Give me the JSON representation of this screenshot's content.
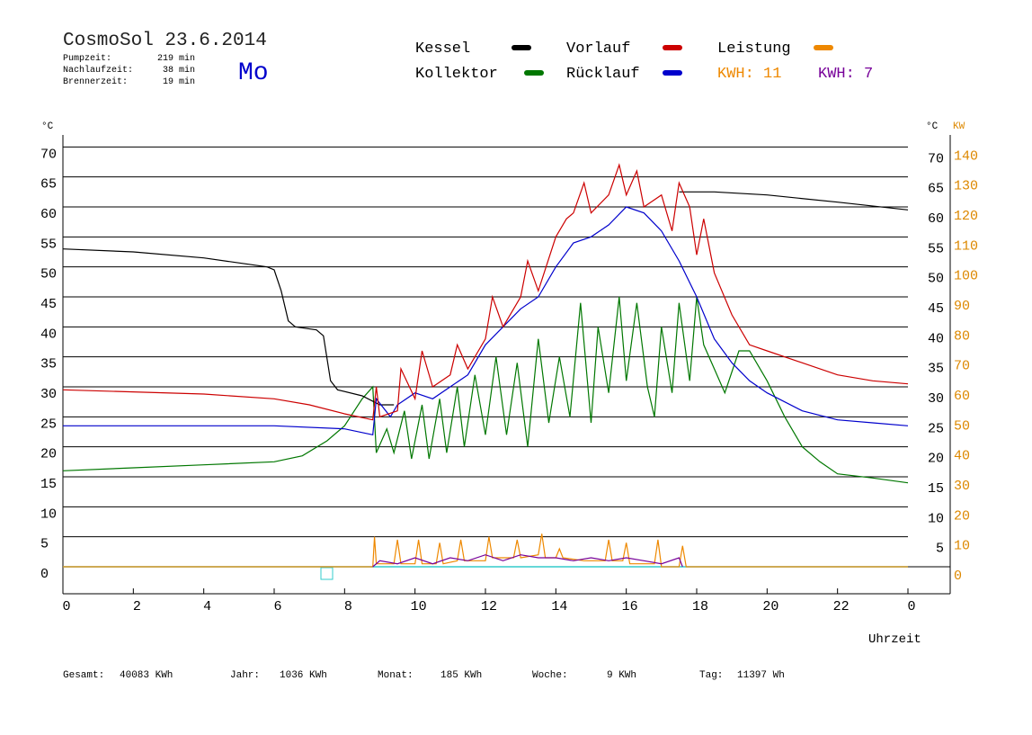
{
  "chart_data": {
    "type": "line",
    "title": "CosmoSol 23.6.2014",
    "day": "Mo",
    "stats": [
      {
        "label": "Pumpzeit:",
        "value": "219 min"
      },
      {
        "label": "Nachlaufzeit:",
        "value": "38 min"
      },
      {
        "label": "Brennerzeit:",
        "value": "19 min"
      }
    ],
    "y_label": "°C",
    "y2_label_c": "°C",
    "y2_label": "KW",
    "x_label": "Uhrzeit",
    "xlim": [
      0,
      25.2
    ],
    "xticks": [
      0,
      2,
      4,
      6,
      8,
      10,
      12,
      14,
      16,
      18,
      20,
      22,
      {
        "value": 24,
        "label": "0"
      }
    ],
    "ylim": [
      -4.5,
      72
    ],
    "yticks": [
      0,
      5,
      10,
      15,
      20,
      25,
      30,
      35,
      40,
      45,
      50,
      55,
      60,
      65,
      70
    ],
    "y_right_ticks": [
      5,
      10,
      15,
      20,
      25,
      30,
      35,
      40,
      45,
      50,
      55,
      60,
      65,
      70
    ],
    "y2lim": [
      -9,
      144
    ],
    "y2ticks": [
      0,
      10,
      20,
      30,
      40,
      50,
      60,
      70,
      80,
      90,
      100,
      110,
      120,
      130,
      140
    ],
    "grid": true,
    "series": [
      {
        "name": "Kessel",
        "color": "#000000",
        "x": [
          0,
          2,
          4,
          5.8,
          6,
          6.2,
          6.4,
          6.6,
          7.2,
          7.4,
          7.6,
          7.8,
          8.5,
          9,
          9.4,
          17.5,
          17.5,
          18.5,
          20,
          22,
          24
        ],
        "values": [
          53,
          52.5,
          51.5,
          50,
          49.5,
          46,
          41,
          40,
          39.5,
          38.5,
          31,
          29.5,
          28.5,
          27,
          27,
          null,
          62.5,
          62.5,
          62,
          60.8,
          59.5
        ]
      },
      {
        "name": "Vorlauf",
        "color": "#cc0000",
        "x": [
          0,
          4,
          6,
          7,
          8,
          8.8,
          8.9,
          9,
          9.5,
          9.6,
          10,
          10.2,
          10.5,
          11,
          11.2,
          11.5,
          12,
          12.2,
          12.5,
          13,
          13.2,
          13.5,
          14,
          14.3,
          14.5,
          14.8,
          15,
          15.5,
          15.8,
          16,
          16.3,
          16.5,
          17,
          17.3,
          17.5,
          17.8,
          18,
          18.2,
          18.5,
          19,
          19.5,
          20,
          21,
          22,
          23,
          24
        ],
        "values": [
          29.5,
          28.8,
          28,
          27,
          25.5,
          24.5,
          30,
          25,
          26,
          33,
          28,
          36,
          30,
          32,
          37,
          33,
          38,
          45,
          40,
          45,
          51,
          46,
          55,
          58,
          59,
          64,
          59,
          62,
          67,
          62,
          66,
          60,
          62,
          56,
          64,
          60,
          52,
          58,
          49,
          42,
          37,
          36,
          34,
          32,
          31,
          30.5
        ]
      },
      {
        "name": "Rücklauf",
        "color": "#0000cc",
        "x": [
          0,
          4,
          6,
          8,
          8.8,
          8.9,
          9.3,
          9.5,
          10,
          10.5,
          11,
          11.5,
          12,
          12.5,
          13,
          13.5,
          14,
          14.5,
          15,
          15.5,
          16,
          16.5,
          17,
          17.5,
          18,
          18.5,
          19,
          19.5,
          20,
          21,
          22,
          23,
          24
        ],
        "values": [
          23.5,
          23.5,
          23.5,
          23,
          22,
          28,
          25,
          27,
          29,
          28,
          30,
          32,
          37,
          40,
          43,
          45,
          50,
          54,
          55,
          57,
          60,
          59,
          56,
          51,
          45,
          38,
          34,
          31,
          29,
          26,
          24.5,
          24,
          23.5
        ]
      },
      {
        "name": "Kollektor",
        "color": "#007700",
        "x": [
          0,
          2,
          4,
          6,
          6.8,
          7.5,
          8,
          8.5,
          8.8,
          8.9,
          9.2,
          9.4,
          9.7,
          9.9,
          10.2,
          10.4,
          10.7,
          10.9,
          11.2,
          11.4,
          11.7,
          12,
          12.3,
          12.6,
          12.9,
          13.2,
          13.5,
          13.8,
          14.1,
          14.4,
          14.7,
          15,
          15.2,
          15.5,
          15.8,
          16,
          16.3,
          16.6,
          16.8,
          17,
          17.3,
          17.5,
          17.8,
          18,
          18.2,
          18.5,
          18.8,
          19.2,
          19.5,
          20,
          20.5,
          21,
          21.5,
          22,
          23,
          24
        ],
        "values": [
          16,
          16.5,
          17,
          17.5,
          18.5,
          21,
          23.5,
          28,
          30,
          19,
          23,
          19,
          26,
          18,
          27,
          18,
          28,
          19,
          30,
          20,
          32,
          22,
          35,
          22,
          34,
          20,
          38,
          24,
          35,
          25,
          44,
          24,
          40,
          29,
          45,
          31,
          44,
          30,
          25,
          40,
          29,
          44,
          31,
          45,
          37,
          33,
          29,
          36,
          36,
          31,
          25,
          20,
          17.5,
          15.5,
          14.8,
          14
        ]
      },
      {
        "name": "Leistung",
        "color": "#ee8800",
        "axis": "y2",
        "kwh": "KWH: 11",
        "x": [
          0,
          8.8,
          8.85,
          8.9,
          9.4,
          9.5,
          9.6,
          10,
          10.1,
          10.2,
          10.6,
          10.7,
          10.8,
          11.2,
          11.3,
          11.4,
          12,
          12.1,
          12.2,
          12.8,
          12.9,
          13,
          13.5,
          13.6,
          13.7,
          14,
          14.1,
          14.2,
          14.8,
          15,
          15.4,
          15.5,
          15.6,
          15.9,
          16,
          16.1,
          16.8,
          16.9,
          17,
          17.5,
          17.6,
          17.7,
          24
        ],
        "values": [
          0,
          0,
          10,
          1,
          1,
          9,
          1,
          1,
          9,
          1,
          1,
          8,
          1,
          2,
          9,
          2,
          2,
          10,
          3,
          3,
          9,
          3,
          4,
          11,
          3,
          3,
          6,
          3,
          2,
          2,
          2,
          9,
          2,
          2,
          8,
          1,
          1,
          9,
          0,
          0,
          7,
          0,
          0
        ]
      },
      {
        "color": "#770099",
        "axis": "y2",
        "kwh": "KWH: 7",
        "x": [
          8.8,
          9,
          9.5,
          10,
          10.5,
          11,
          11.5,
          12,
          12.5,
          13,
          13.5,
          14,
          14.5,
          15,
          15.5,
          16,
          16.5,
          17,
          17.5,
          17.6
        ],
        "values": [
          0,
          2,
          1,
          3,
          1,
          3,
          2,
          4,
          2,
          4,
          3,
          3,
          2,
          3,
          2,
          3,
          2,
          1,
          3,
          0
        ]
      }
    ],
    "footer": [
      {
        "label": "Gesamt:",
        "value": "40083 KWh"
      },
      {
        "label": "Jahr:",
        "value": "1036 KWh"
      },
      {
        "label": "Monat:",
        "value": "185 KWh"
      },
      {
        "label": "Woche:",
        "value": "9 KWh"
      },
      {
        "label": "Tag:",
        "value": "11397 Wh"
      }
    ]
  }
}
